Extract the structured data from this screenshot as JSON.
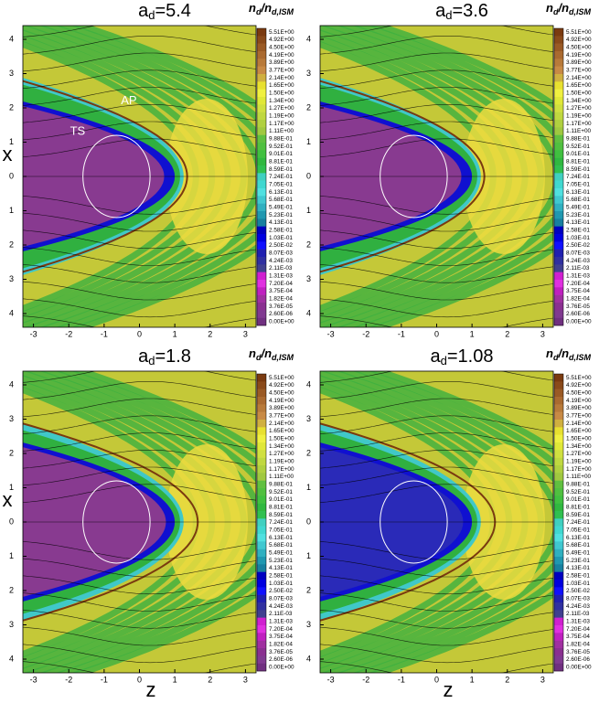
{
  "colorbar": {
    "title": "n",
    "title_sub": "d",
    "title_mid": "/n",
    "title_sub2": "d,ISM",
    "levels": [
      {
        "value": 5.51,
        "label": "5.51E+00"
      },
      {
        "value": 4.92,
        "label": "4.92E+00"
      },
      {
        "value": 4.5,
        "label": "4.50E+00"
      },
      {
        "value": 4.19,
        "label": "4.19E+00"
      },
      {
        "value": 3.89,
        "label": "3.89E+00"
      },
      {
        "value": 3.77,
        "label": "3.77E+00"
      },
      {
        "value": 2.14,
        "label": "2.14E+00"
      },
      {
        "value": 1.65,
        "label": "1.65E+00"
      },
      {
        "value": 1.5,
        "label": "1.50E+00"
      },
      {
        "value": 1.34,
        "label": "1.34E+00"
      },
      {
        "value": 1.27,
        "label": "1.27E+00"
      },
      {
        "value": 1.19,
        "label": "1.19E+00"
      },
      {
        "value": 1.17,
        "label": "1.17E+00"
      },
      {
        "value": 1.11,
        "label": "1.11E+00"
      },
      {
        "value": 0.988,
        "label": "9.88E-01"
      },
      {
        "value": 0.952,
        "label": "9.52E-01"
      },
      {
        "value": 0.901,
        "label": "9.01E-01"
      },
      {
        "value": 0.881,
        "label": "8.81E-01"
      },
      {
        "value": 0.859,
        "label": "8.59E-01"
      },
      {
        "value": 0.724,
        "label": "7.24E-01"
      },
      {
        "value": 0.705,
        "label": "7.05E-01"
      },
      {
        "value": 0.613,
        "label": "6.13E-01"
      },
      {
        "value": 0.568,
        "label": "5.68E-01"
      },
      {
        "value": 0.549,
        "label": "5.49E-01"
      },
      {
        "value": 0.523,
        "label": "5.23E-01"
      },
      {
        "value": 0.413,
        "label": "4.13E-01"
      },
      {
        "value": 0.258,
        "label": "2.58E-01"
      },
      {
        "value": 0.103,
        "label": "1.03E-01"
      },
      {
        "value": 0.025,
        "label": "2.50E-02"
      },
      {
        "value": 0.00807,
        "label": "8.07E-03"
      },
      {
        "value": 0.00424,
        "label": "4.24E-03"
      },
      {
        "value": 0.00211,
        "label": "2.11E-03"
      },
      {
        "value": 0.00131,
        "label": "1.31E-03"
      },
      {
        "value": 0.00072,
        "label": "7.20E-04"
      },
      {
        "value": 0.000375,
        "label": "3.75E-04"
      },
      {
        "value": 0.000182,
        "label": "1.82E-04"
      },
      {
        "value": 3.76e-05,
        "label": "3.76E-05"
      },
      {
        "value": 2.6e-06,
        "label": "2.60E-06"
      },
      {
        "value": 0,
        "label": "0.00E+00"
      }
    ],
    "colors": [
      "#7a3a10",
      "#8a4a1a",
      "#9a5a25",
      "#aa6a30",
      "#b87a3a",
      "#c88a45",
      "#d0b040",
      "#e8e030",
      "#f0f040",
      "#e0e838",
      "#d0e040",
      "#c0d840",
      "#b0d040",
      "#a0c840",
      "#60c040",
      "#50c040",
      "#40c040",
      "#30b840",
      "#30c050",
      "#40d0c0",
      "#40d8d0",
      "#50e0e0",
      "#40c8d0",
      "#30b0c0",
      "#2098b0",
      "#1880a0",
      "#0000c0",
      "#0000e0",
      "#1010ff",
      "#2020b0",
      "#3030a0",
      "#404090",
      "#d020d0",
      "#e030e0",
      "#c020c0",
      "#a030a0",
      "#8a3090",
      "#803a90",
      "#703080"
    ]
  },
  "chart_data": [
    {
      "type": "contour",
      "title": "a",
      "title_sub": "d",
      "title_value": "=5.4",
      "ylabel": "x",
      "annotations": [
        {
          "text": "AP",
          "z": -0.3,
          "x": 2.2
        },
        {
          "text": "TS",
          "z": -1.75,
          "x": 1.3
        }
      ],
      "xlim": [
        -3.3,
        3.3
      ],
      "xticks": [
        -3,
        -2,
        -1,
        0,
        1,
        2,
        3
      ],
      "ylim": [
        -4.4,
        4.4
      ],
      "yticks": [
        {
          "value": -4,
          "label": "4"
        },
        {
          "value": -3,
          "label": "3"
        },
        {
          "value": -2,
          "label": "2"
        },
        {
          "value": -1,
          "label": "1"
        },
        0,
        1,
        2,
        3,
        4
      ]
    },
    {
      "type": "contour",
      "title": "a",
      "title_sub": "d",
      "title_value": "=3.6",
      "xlim": [
        -3.3,
        3.3
      ],
      "xticks": [
        -3,
        -2,
        -1,
        0,
        1,
        2,
        3
      ],
      "ylim": [
        -4.4,
        4.4
      ],
      "yticks": [
        {
          "value": -4,
          "label": "4"
        },
        {
          "value": -3,
          "label": "3"
        },
        {
          "value": -2,
          "label": "2"
        },
        {
          "value": -1,
          "label": "1"
        },
        0,
        1,
        2,
        3,
        4
      ]
    },
    {
      "type": "contour",
      "title": "a",
      "title_sub": "d",
      "title_value": "=1.8",
      "ylabel": "x",
      "xlabel": "z",
      "xlim": [
        -3.3,
        3.3
      ],
      "xticks": [
        -3,
        -2,
        -1,
        0,
        1,
        2,
        3
      ],
      "ylim": [
        -4.4,
        4.4
      ],
      "yticks": [
        {
          "value": -4,
          "label": "4"
        },
        {
          "value": -3,
          "label": "3"
        },
        {
          "value": -2,
          "label": "2"
        },
        {
          "value": -1,
          "label": "1"
        },
        0,
        1,
        2,
        3,
        4
      ]
    },
    {
      "type": "contour",
      "title": "a",
      "title_sub": "d",
      "title_value": "=1.08",
      "xlabel": "z",
      "xlim": [
        -3.3,
        3.3
      ],
      "xticks": [
        -3,
        -2,
        -1,
        0,
        1,
        2,
        3
      ],
      "ylim": [
        -4.4,
        4.4
      ],
      "yticks": [
        {
          "value": -4,
          "label": "4"
        },
        {
          "value": -3,
          "label": "3"
        },
        {
          "value": -2,
          "label": "2"
        },
        {
          "value": -1,
          "label": "1"
        },
        0,
        1,
        2,
        3,
        4
      ]
    }
  ]
}
